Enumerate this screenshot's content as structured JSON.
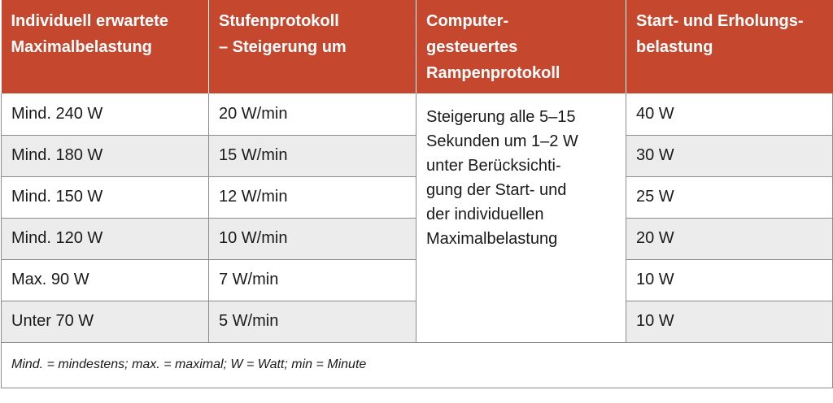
{
  "table": {
    "headers": [
      [
        "Individuell erwartete",
        "Maximalbelastung"
      ],
      [
        "Stufenprotokoll",
        "– Steigerung um"
      ],
      [
        "Computer-",
        "gesteuertes",
        "Rampenprotokoll"
      ],
      [
        "Start- und Erholungs-",
        "belastung"
      ]
    ],
    "rows": [
      {
        "max_load": "Mind. 240 W",
        "step": "20 W/min",
        "start_recovery": "40 W"
      },
      {
        "max_load": "Mind. 180 W",
        "step": "15 W/min",
        "start_recovery": "30 W"
      },
      {
        "max_load": "Mind. 150 W",
        "step": "12 W/min",
        "start_recovery": "25 W"
      },
      {
        "max_load": "Mind. 120 W",
        "step": "10 W/min",
        "start_recovery": "20 W"
      },
      {
        "max_load": "Max. 90 W",
        "step": "7 W/min",
        "start_recovery": "10 W"
      },
      {
        "max_load": "Unter 70 W",
        "step": "5 W/min",
        "start_recovery": "10 W"
      }
    ],
    "ramp_protocol_lines": [
      "Steigerung alle 5–15",
      "Sekunden um 1–2 W",
      "unter Berücksichti-",
      "gung der Start- und",
      "der individuellen",
      "Maximalbelastung"
    ],
    "footnote": "Mind. = mindestens; max. = maximal; W = Watt; min = Minute"
  },
  "colors": {
    "header_bg": "#c5472e",
    "header_text": "#ffffff",
    "alt_row_bg": "#ececec",
    "border": "#8c8c8c"
  }
}
